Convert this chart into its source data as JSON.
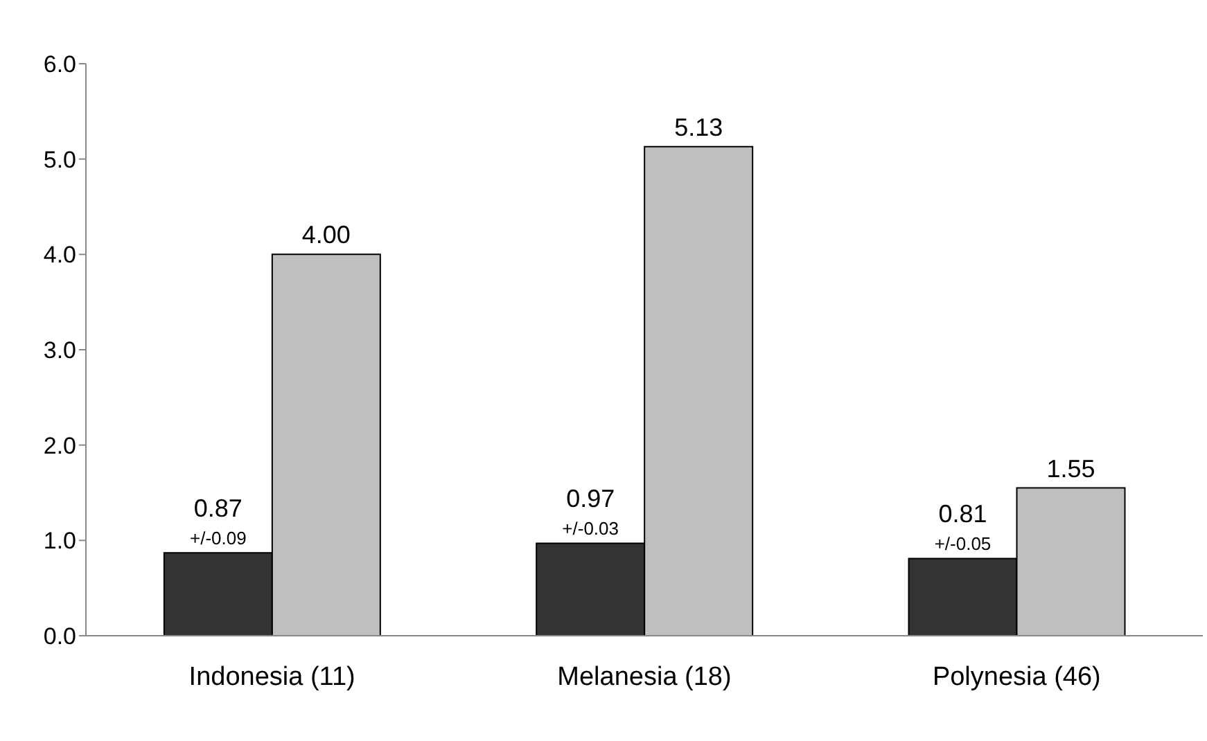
{
  "chart_data": {
    "type": "bar",
    "categories": [
      "Indonesia (11)",
      "Melanesia (18)",
      "Polynesia (46)"
    ],
    "series": [
      {
        "color": "#333333",
        "values": [
          0.87,
          0.97,
          0.81
        ],
        "value_labels": [
          "0.87",
          "0.97",
          "0.81"
        ]
      },
      {
        "color": "#bfbfbf",
        "values": [
          4.0,
          5.13,
          1.55
        ],
        "value_labels": [
          "4.00",
          "5.13",
          "1.55"
        ]
      }
    ],
    "ylim": [
      0,
      6
    ],
    "yticks": [
      {
        "value": 0,
        "label": "0.0"
      },
      {
        "value": 1,
        "label": "1.0"
      },
      {
        "value": 2,
        "label": "2.0"
      },
      {
        "value": 3,
        "label": "3.0"
      },
      {
        "value": 4,
        "label": "4.0"
      },
      {
        "value": 5,
        "label": "5.0"
      },
      {
        "value": 6,
        "label": "6.0"
      }
    ],
    "annotations": [
      {
        "text": "+/-0.09",
        "x": "Indonesia (11)",
        "y": 0.87
      },
      {
        "text": "+/-0.03",
        "x": "Melanesia (18)",
        "y": 0.97
      },
      {
        "text": "+/-0.05",
        "x": "Polynesia (46)",
        "y": 0.81
      }
    ],
    "grid": false,
    "legend": false
  }
}
